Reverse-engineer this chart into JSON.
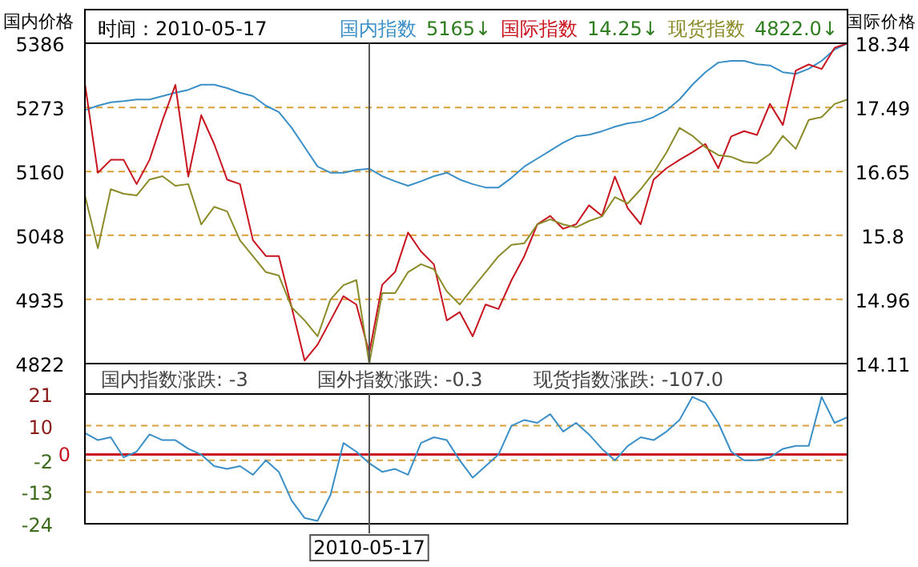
{
  "chart_data": [
    {
      "type": "line",
      "ylabel": "国内价格",
      "y2label": "国际价格",
      "grid": "y",
      "legend": "top right",
      "categories": [
        null,
        null,
        null,
        null,
        null,
        null,
        null,
        null,
        null,
        null,
        null,
        null,
        null,
        null,
        null,
        null,
        null,
        null,
        null,
        null,
        null,
        null,
        null,
        null,
        null,
        null,
        null,
        null,
        null,
        null,
        null,
        null,
        null,
        null,
        null,
        null,
        null,
        null,
        null,
        null,
        null,
        null,
        null,
        null,
        null,
        null,
        null,
        null,
        null,
        null,
        null,
        null,
        null,
        null,
        null,
        null,
        null,
        null,
        null,
        null
      ],
      "ylim": [
        4822,
        5386
      ],
      "yticks": [
        5386,
        5273,
        5160,
        5048,
        4935,
        4822
      ],
      "y2lim": [
        14.11,
        18.34
      ],
      "y2ticks": [
        18.34,
        17.49,
        16.65,
        15.8,
        14.96,
        14.11
      ],
      "annotations": [
        "时间：2010-05-17",
        "5165↓",
        "14.25↓",
        "4822.0↓"
      ],
      "series": [
        {
          "name": "国内指数",
          "color": "#3a8fc7",
          "values": [
            5268,
            5276,
            5282,
            5284,
            5287,
            5287,
            5293,
            5299,
            5304,
            5313,
            5313,
            5307,
            5299,
            5293,
            5276,
            5265,
            5237,
            5203,
            5169,
            5158,
            5158,
            5163,
            5165,
            5152,
            5143,
            5135,
            5143,
            5152,
            5158,
            5146,
            5138,
            5132,
            5132,
            5149,
            5169,
            5183,
            5197,
            5211,
            5222,
            5225,
            5231,
            5239,
            5245,
            5248,
            5256,
            5268,
            5287,
            5313,
            5335,
            5352,
            5355,
            5355,
            5349,
            5347,
            5335,
            5332,
            5341,
            5355,
            5375,
            5386
          ]
        },
        {
          "name": "国际指数",
          "color": "#c8141e",
          "axis": "y2",
          "values": [
            17.81,
            16.63,
            16.8,
            16.8,
            16.48,
            16.8,
            17.32,
            17.79,
            16.58,
            17.39,
            17.01,
            16.54,
            16.48,
            15.74,
            15.53,
            15.53,
            14.85,
            14.15,
            14.36,
            14.68,
            15.0,
            14.89,
            14.25,
            15.15,
            15.32,
            15.84,
            15.59,
            15.42,
            14.68,
            14.79,
            14.47,
            14.89,
            14.83,
            15.21,
            15.53,
            15.95,
            16.06,
            15.89,
            15.95,
            16.2,
            16.06,
            16.58,
            16.16,
            15.95,
            16.54,
            16.69,
            16.8,
            16.9,
            17.01,
            16.69,
            17.11,
            17.18,
            17.13,
            17.54,
            17.26,
            17.98,
            18.06,
            18.0,
            18.28,
            18.34
          ]
        },
        {
          "name": "现货指数",
          "color": "#8b8b2a",
          "values": [
            5118,
            5025,
            5129,
            5121,
            5118,
            5146,
            5152,
            5135,
            5138,
            5067,
            5098,
            5090,
            5039,
            5011,
            4983,
            4977,
            4921,
            4898,
            4870,
            4935,
            4960,
            4969,
            4822,
            4946,
            4946,
            4983,
            4997,
            4988,
            4949,
            4926,
            4955,
            4983,
            5011,
            5031,
            5034,
            5067,
            5076,
            5067,
            5062,
            5073,
            5081,
            5115,
            5104,
            5129,
            5158,
            5194,
            5237,
            5223,
            5203,
            5189,
            5186,
            5177,
            5175,
            5191,
            5223,
            5200,
            5251,
            5256,
            5279,
            5287
          ]
        }
      ]
    },
    {
      "type": "line",
      "grid": "y",
      "categories": [
        null,
        null,
        null,
        null,
        null,
        null,
        null,
        null,
        null,
        null,
        null,
        null,
        null,
        null,
        null,
        null,
        null,
        null,
        null,
        null,
        null,
        null,
        "2010-05-17",
        null,
        null,
        null,
        null,
        null,
        null,
        null,
        null,
        null,
        null,
        null,
        null,
        null,
        null,
        null,
        null,
        null,
        null,
        null,
        null,
        null,
        null,
        null,
        null,
        null,
        null,
        null,
        null,
        null,
        null,
        null,
        null,
        null,
        null,
        null,
        null,
        null
      ],
      "ylim": [
        -24,
        21
      ],
      "yticks": [
        21,
        10,
        -2,
        -13,
        -24
      ],
      "ref_lines": [
        {
          "axis": "y",
          "value": 0,
          "label": "0",
          "color": "#c8141e"
        }
      ],
      "annotations": [
        "国内指数涨跌: -3",
        "国外指数涨跌: -0.3",
        "现货指数涨跌: -107.0"
      ],
      "series": [
        {
          "color": "#3a8fc7",
          "values": [
            7.5,
            5,
            6,
            -1,
            1,
            7,
            5,
            5,
            2,
            0,
            -4,
            -5,
            -4,
            -7,
            -2,
            -6,
            -16,
            -22,
            -23,
            -14,
            4,
            1,
            -3,
            -6,
            -5,
            -7,
            4,
            6,
            5,
            -2,
            -8,
            -4,
            0,
            10,
            12,
            11,
            14,
            8,
            11,
            7,
            2,
            -2,
            3,
            6,
            5,
            8,
            12,
            20,
            18,
            11,
            1,
            -2,
            -2,
            -1,
            2,
            3,
            3,
            20,
            11,
            13
          ]
        }
      ]
    }
  ]
}
